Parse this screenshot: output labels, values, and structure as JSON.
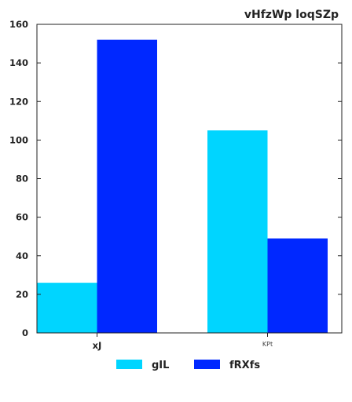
{
  "chart_data": {
    "type": "bar",
    "title": "vHfzWp loqSZp",
    "xlabel": "",
    "ylabel": "",
    "categories": [
      "xJ",
      "KPt"
    ],
    "series": [
      {
        "name": "gIL",
        "values": [
          26,
          105
        ],
        "color": "#00d5ff"
      },
      {
        "name": "fRXfs",
        "values": [
          152,
          49
        ],
        "color": "#0028ff"
      }
    ],
    "ylim": [
      0,
      160
    ],
    "yticks": [
      0,
      20,
      40,
      60,
      80,
      100,
      120,
      140,
      160
    ],
    "grid": false,
    "legend_position": "bottom-center"
  }
}
